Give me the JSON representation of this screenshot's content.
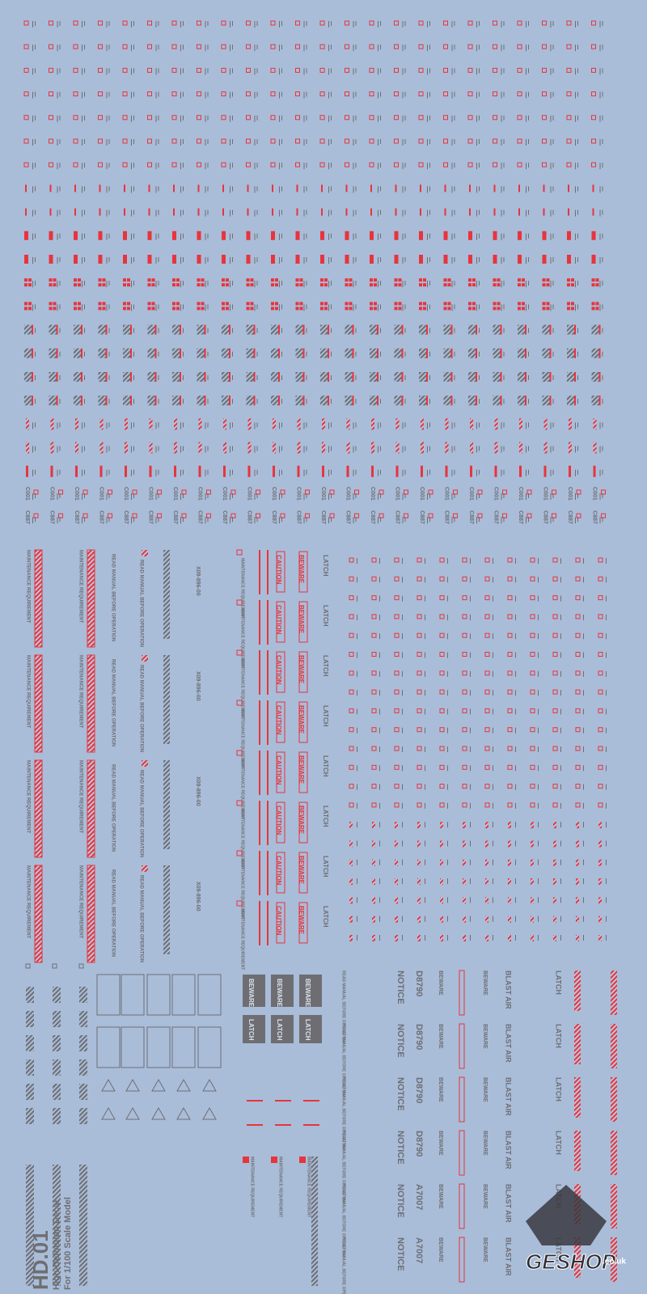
{
  "sheet": {
    "code": "HD.01",
    "subtitle_1": "High-Definition Decal",
    "subtitle_2": "For 1/100 Scale Model"
  },
  "labels": {
    "caution": "CAUTION",
    "beware": "BEWARE",
    "latch": "LATCH",
    "notice": "NOTICE",
    "blast_air": "BLAST AIR",
    "serial_1": "D8790",
    "serial_2": "A7007",
    "code_1": "C001",
    "code_2": "C887",
    "manual": "READ MANUAL BEFORE OPERATION",
    "maintenance": "MAINTENANCE REQUIREMENT",
    "part": "X09-896-00"
  },
  "watermark": {
    "brand": "GESHOP",
    "domain": ".co.uk"
  }
}
